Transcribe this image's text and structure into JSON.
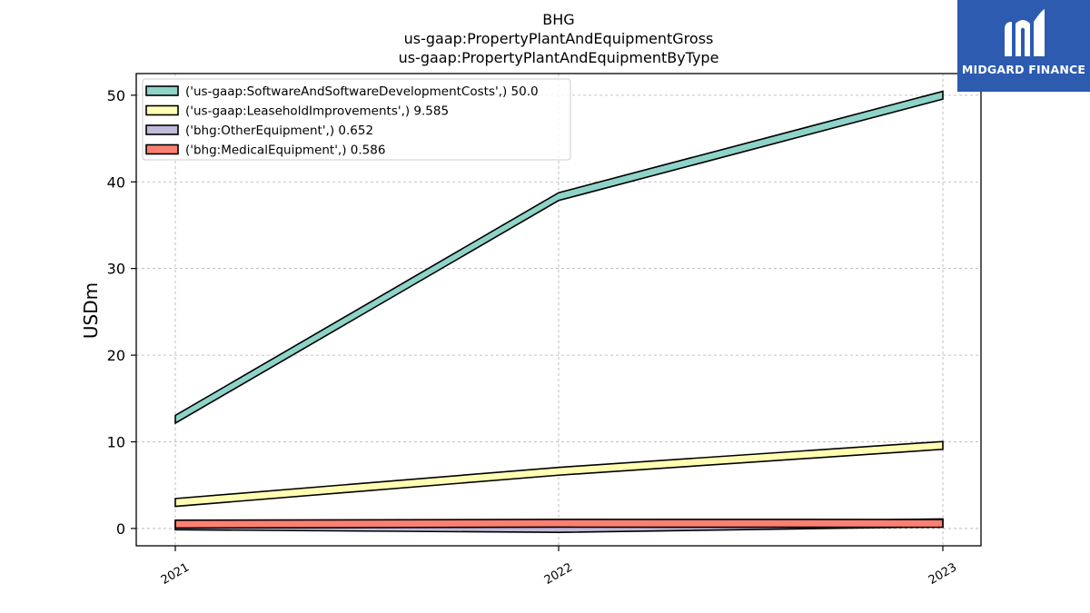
{
  "chart_data": {
    "type": "area",
    "title_lines": [
      "BHG",
      "us-gaap:PropertyPlantAndEquipmentGross",
      "us-gaap:PropertyPlantAndEquipmentByType"
    ],
    "xlabel": "",
    "ylabel": "USDm",
    "categories": [
      "2021",
      "2022",
      "2023"
    ],
    "ylim": [
      -2,
      52.5
    ],
    "yticks": [
      0,
      10,
      20,
      30,
      40,
      50
    ],
    "grid": true,
    "legend_position": "top-left",
    "series": [
      {
        "name": "('us-gaap:SoftwareAndSoftwareDevelopmentCosts',) 50.0",
        "values": [
          12.6,
          38.3,
          50.0
        ],
        "color": "#8dd3c7"
      },
      {
        "name": "('us-gaap:LeaseholdImprovements',) 9.585",
        "values": [
          3.0,
          6.6,
          9.585
        ],
        "color": "#ffffb3"
      },
      {
        "name": "('bhg:OtherEquipment',) 0.652",
        "values": [
          0.3,
          0.0,
          0.652
        ],
        "color": "#bebada"
      },
      {
        "name": "('bhg:MedicalEquipment',) 0.586",
        "values": [
          0.5,
          0.6,
          0.586
        ],
        "color": "#fb8072"
      }
    ]
  },
  "logo": {
    "text": "MIDGARD FINANCE"
  }
}
